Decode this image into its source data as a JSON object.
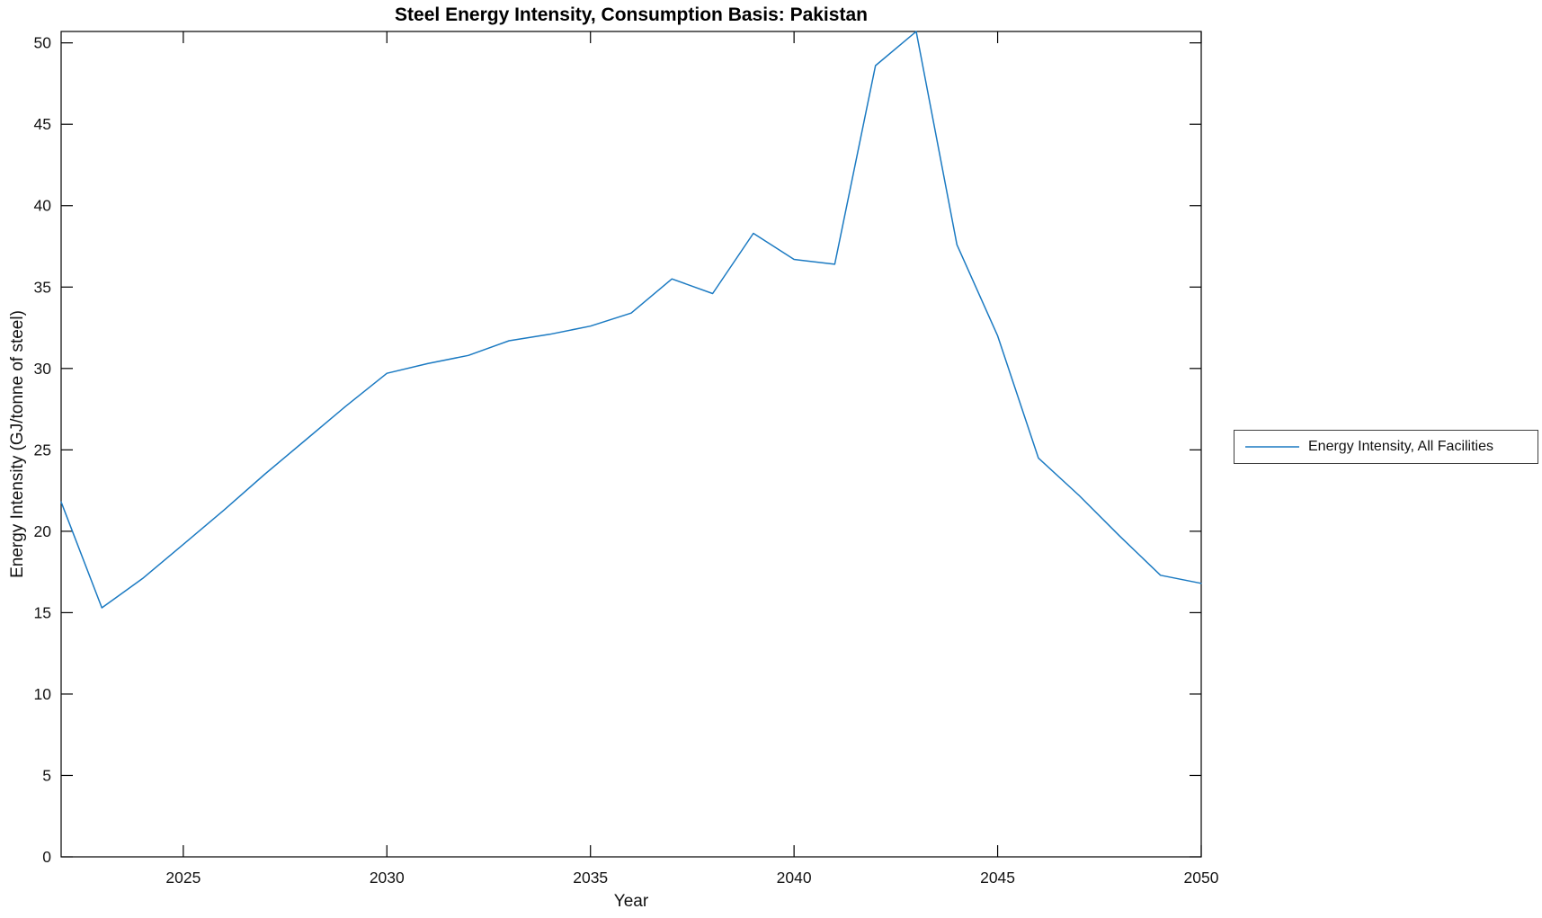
{
  "figure": {
    "title": "Steel Energy Intensity, Consumption Basis: Pakistan",
    "xlabel": "Year",
    "ylabel": "Energy Intensity (GJ/tonne of steel)",
    "legend": {
      "entries": [
        {
          "label": "Energy Intensity, All Facilities",
          "color": "#1b7ac2"
        }
      ],
      "position": "outside-right"
    }
  },
  "chart_data": {
    "type": "line",
    "title": "Steel Energy Intensity, Consumption Basis: Pakistan",
    "xlabel": "Year",
    "ylabel": "Energy Intensity (GJ/tonne of steel)",
    "xlim": [
      2022,
      2050
    ],
    "ylim": [
      0,
      50.7
    ],
    "xticks": [
      2025,
      2030,
      2035,
      2040,
      2045,
      2050
    ],
    "yticks": [
      0,
      5,
      10,
      15,
      20,
      25,
      30,
      35,
      40,
      45,
      50
    ],
    "grid": false,
    "legend_position": "outside-right",
    "line_color": "#1b7ac2",
    "series": [
      {
        "name": "Energy Intensity, All Facilities",
        "x": [
          2022,
          2023,
          2024,
          2025,
          2026,
          2027,
          2028,
          2029,
          2030,
          2031,
          2032,
          2033,
          2034,
          2035,
          2036,
          2037,
          2038,
          2039,
          2040,
          2041,
          2042,
          2043,
          2044,
          2045,
          2046,
          2047,
          2048,
          2049,
          2050
        ],
        "values": [
          21.8,
          15.3,
          17.1,
          19.2,
          21.3,
          23.5,
          25.6,
          27.7,
          29.7,
          30.3,
          30.8,
          31.7,
          32.1,
          32.6,
          33.4,
          35.5,
          34.6,
          38.3,
          36.7,
          36.4,
          48.6,
          50.7,
          37.6,
          32.0,
          24.5,
          22.2,
          19.7,
          17.3,
          16.8
        ]
      }
    ]
  }
}
